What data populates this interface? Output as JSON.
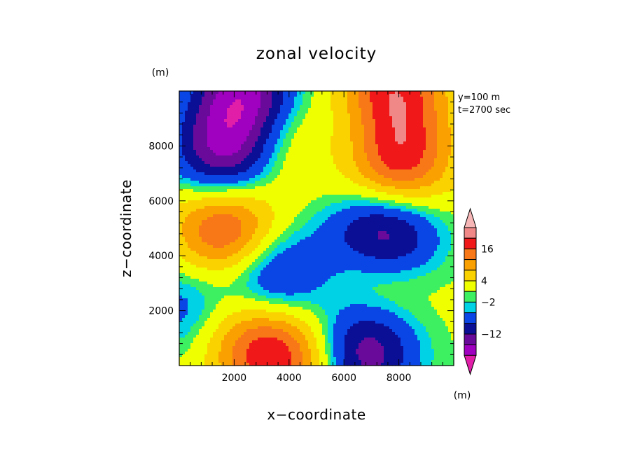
{
  "chart_data": {
    "type": "heatmap",
    "title": "zonal velocity",
    "xlabel": "x−coordinate",
    "ylabel": "z−coordinate",
    "y_unit_label": "(m)",
    "colorbar_unit_label": "(m)",
    "annotations": [
      "y=100 m",
      "t=2700 sec"
    ],
    "xlim": [
      0,
      10000
    ],
    "ylim": [
      0,
      10000
    ],
    "x_ticks": [
      2000,
      4000,
      6000,
      8000
    ],
    "x_tick_labels": [
      "2000",
      "4000",
      "6000",
      "8000"
    ],
    "y_ticks": [
      2000,
      4000,
      6000,
      8000
    ],
    "y_tick_labels": [
      "2000",
      "4000",
      "6000",
      "8000"
    ],
    "colorbar": {
      "levels": [
        -24,
        -20,
        -16,
        -12,
        -8,
        -4,
        -2,
        0,
        4,
        8,
        12,
        16,
        20,
        24
      ],
      "labeled_levels": [
        16,
        4,
        -2,
        -12
      ],
      "labeled_text": [
        "16",
        "4",
        "−2",
        "−12"
      ],
      "colors": [
        "#e01ea8",
        "#a000c0",
        "#6a0a9a",
        "#0a0f96",
        "#0a46e6",
        "#00d2e6",
        "#3cf062",
        "#f0ff00",
        "#fad200",
        "#faa000",
        "#f87818",
        "#f01818",
        "#f08888",
        "#f6b6b6"
      ],
      "extend": "both"
    },
    "features": [
      {
        "x": 1700,
        "z": 7500,
        "value": -18
      },
      {
        "x": 2500,
        "z": 9700,
        "value": -22
      },
      {
        "x": 1700,
        "z": 5000,
        "value": 20
      },
      {
        "x": 3200,
        "z": 3100,
        "value": -14
      },
      {
        "x": 500,
        "z": 2100,
        "value": -9
      },
      {
        "x": 2100,
        "z": 1400,
        "value": 10
      },
      {
        "x": 3700,
        "z": 300,
        "value": 17
      },
      {
        "x": 7900,
        "z": 7300,
        "value": 20
      },
      {
        "x": 7700,
        "z": 9900,
        "value": 20
      },
      {
        "x": 7600,
        "z": 4800,
        "value": -20
      },
      {
        "x": 6800,
        "z": 600,
        "value": -16
      },
      {
        "x": 7300,
        "z": 3300,
        "value": 9
      },
      {
        "x": 3300,
        "z": 8600,
        "value": 10
      },
      {
        "x": 6900,
        "z": 8700,
        "value": -7
      },
      {
        "x": 4700,
        "z": 6000,
        "value": 1
      },
      {
        "x": 5600,
        "z": 4500,
        "value": -3
      }
    ]
  }
}
